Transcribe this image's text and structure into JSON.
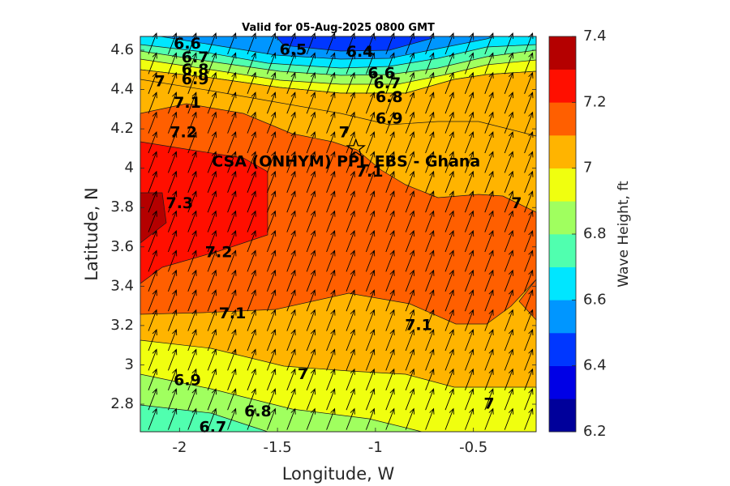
{
  "chart_data": {
    "type": "heatmap",
    "subtype": "filled contour with vector field",
    "title": "Valid for 05-Aug-2025 0800 GMT",
    "xlabel": "Longitude, W",
    "ylabel": "Latitude, N",
    "xlim": [
      -2.2,
      -0.18
    ],
    "ylim": [
      2.66,
      4.67
    ],
    "xticks": [
      -2,
      -1.5,
      -1,
      -0.5
    ],
    "xtick_labels": [
      "-2",
      "-1.5",
      "-1",
      "-0.5"
    ],
    "yticks": [
      2.8,
      3,
      3.2,
      3.4,
      3.6,
      3.8,
      4,
      4.2,
      4.4,
      4.6
    ],
    "ytick_labels": [
      "2.8",
      "3",
      "3.2",
      "3.4",
      "3.6",
      "3.8",
      "4",
      "4.2",
      "4.4",
      "4.6"
    ],
    "colorbar": {
      "label": "Wave Height, ft",
      "min": 6.2,
      "max": 7.4,
      "step": 0.1,
      "ticks": [
        6.2,
        6.4,
        6.6,
        6.8,
        7,
        7.2,
        7.4
      ],
      "tick_labels": [
        "6.2",
        "6.4",
        "6.6",
        "6.8",
        "7",
        "7.2",
        "7.4"
      ],
      "colors": [
        "#00009b",
        "#0000e6",
        "#0037ff",
        "#0096ff",
        "#00e6ff",
        "#50ffaf",
        "#a0ff5f",
        "#f0ff0f",
        "#ffb400",
        "#ff5f00",
        "#ff0f00",
        "#b40000"
      ]
    },
    "grid": false,
    "site": {
      "label": "CSA (ONHYM) PPL EBS  - Ghana",
      "lon": -1.1,
      "lat": 4.1
    },
    "vector_direction": "towards north-northeast",
    "contour_labels": [
      {
        "text": "6.6",
        "lon": -1.96,
        "lat": 4.63
      },
      {
        "text": "6.5",
        "lon": -1.42,
        "lat": 4.6
      },
      {
        "text": "6.4",
        "lon": -1.08,
        "lat": 4.59
      },
      {
        "text": "6.7",
        "lon": -1.92,
        "lat": 4.56
      },
      {
        "text": "6.8",
        "lon": -1.92,
        "lat": 4.5
      },
      {
        "text": "6.9",
        "lon": -1.92,
        "lat": 4.45
      },
      {
        "text": "7",
        "lon": -2.1,
        "lat": 4.44
      },
      {
        "text": "6.6",
        "lon": -0.97,
        "lat": 4.48
      },
      {
        "text": "6.7",
        "lon": -0.94,
        "lat": 4.43
      },
      {
        "text": "6.8",
        "lon": -0.93,
        "lat": 4.36
      },
      {
        "text": "6.9",
        "lon": -0.93,
        "lat": 4.25
      },
      {
        "text": "7.1",
        "lon": -1.96,
        "lat": 4.33
      },
      {
        "text": "7.2",
        "lon": -1.98,
        "lat": 4.18
      },
      {
        "text": "7",
        "lon": -1.16,
        "lat": 4.18
      },
      {
        "text": "7.1",
        "lon": -1.03,
        "lat": 3.98
      },
      {
        "text": "7",
        "lon": -0.28,
        "lat": 3.82
      },
      {
        "text": "7.3",
        "lon": -2.0,
        "lat": 3.82
      },
      {
        "text": "7.2",
        "lon": -1.8,
        "lat": 3.57
      },
      {
        "text": "7.1",
        "lon": -1.73,
        "lat": 3.26
      },
      {
        "text": "7.1",
        "lon": -0.78,
        "lat": 3.2
      },
      {
        "text": "7",
        "lon": -1.37,
        "lat": 2.95
      },
      {
        "text": "6.9",
        "lon": -1.96,
        "lat": 2.92
      },
      {
        "text": "6.8",
        "lon": -1.6,
        "lat": 2.76
      },
      {
        "text": "6.7",
        "lon": -1.83,
        "lat": 2.68
      },
      {
        "text": "7",
        "lon": -0.42,
        "lat": 2.8
      }
    ]
  }
}
